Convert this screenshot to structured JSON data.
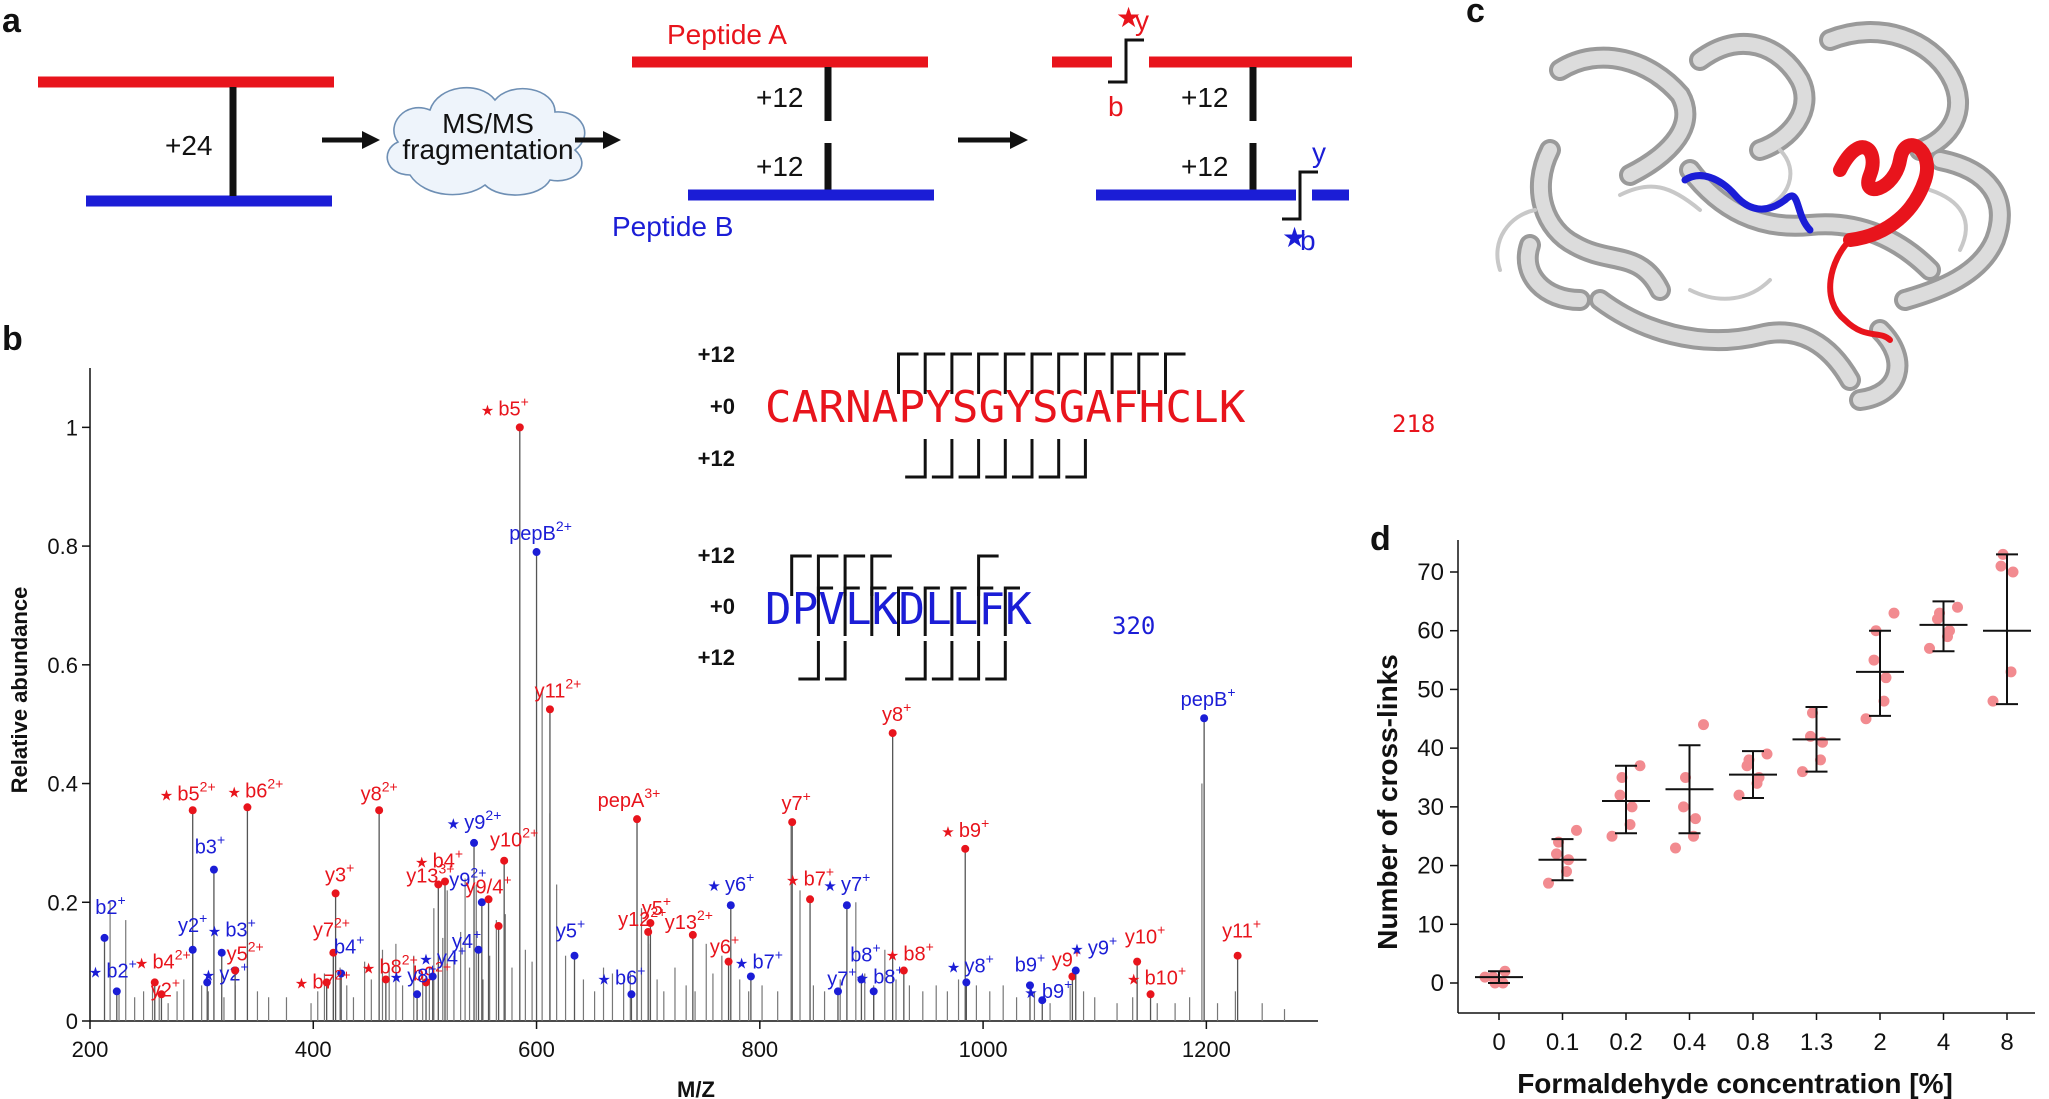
{
  "colors": {
    "red": "#e8141c",
    "blue": "#1b1dd6",
    "pink": "#f28b90",
    "grey": "#8a8a8a",
    "black": "#111111"
  },
  "panels": {
    "a": "a",
    "b": "b",
    "c": "c",
    "d": "d"
  },
  "schematic": {
    "mass_total": "+24",
    "cloud_line1": "MS/MS",
    "cloud_line2": "fragmentation",
    "peptide_a": "Peptide A",
    "peptide_b": "Peptide B",
    "mass_half": "+12",
    "ion_y": "y",
    "ion_b": "b",
    "star": "★"
  },
  "spectrum": {
    "xlabel": "M/Z",
    "ylabel": "Relative abundance",
    "xlim": [
      200,
      1300
    ],
    "ylim": [
      0,
      1.1
    ],
    "xticks": [
      {
        "value": 200,
        "label": "200"
      },
      {
        "value": 400,
        "label": "400"
      },
      {
        "value": 600,
        "label": "600"
      },
      {
        "value": 800,
        "label": "800"
      },
      {
        "value": 1000,
        "label": "1000"
      },
      {
        "value": 1200,
        "label": "1200"
      }
    ],
    "yticks": [
      {
        "value": 0,
        "label": "0"
      },
      {
        "value": 0.2,
        "label": "0.2"
      },
      {
        "value": 0.4,
        "label": "0.4"
      },
      {
        "value": 0.6,
        "label": "0.6"
      },
      {
        "value": 0.8,
        "label": "0.8"
      },
      {
        "value": 1,
        "label": "1"
      }
    ],
    "background_peaks": [
      [
        218,
        0.2
      ],
      [
        226,
        0.05
      ],
      [
        232,
        0.17
      ],
      [
        240,
        0.04
      ],
      [
        248,
        0.05
      ],
      [
        256,
        0.06
      ],
      [
        262,
        0.04
      ],
      [
        270,
        0.03
      ],
      [
        278,
        0.05
      ],
      [
        284,
        0.07
      ],
      [
        300,
        0.06
      ],
      [
        306,
        0.05
      ],
      [
        320,
        0.04
      ],
      [
        330,
        0.06
      ],
      [
        350,
        0.05
      ],
      [
        360,
        0.04
      ],
      [
        376,
        0.04
      ],
      [
        398,
        0.03
      ],
      [
        404,
        0.05
      ],
      [
        410,
        0.08
      ],
      [
        418,
        0.11
      ],
      [
        424,
        0.09
      ],
      [
        430,
        0.06
      ],
      [
        436,
        0.04
      ],
      [
        446,
        0.1
      ],
      [
        452,
        0.07
      ],
      [
        462,
        0.12
      ],
      [
        468,
        0.09
      ],
      [
        474,
        0.13
      ],
      [
        480,
        0.06
      ],
      [
        490,
        0.11
      ],
      [
        498,
        0.08
      ],
      [
        504,
        0.09
      ],
      [
        508,
        0.19
      ],
      [
        516,
        0.14
      ],
      [
        520,
        0.22
      ],
      [
        526,
        0.11
      ],
      [
        532,
        0.15
      ],
      [
        536,
        0.24
      ],
      [
        540,
        0.09
      ],
      [
        546,
        0.23
      ],
      [
        552,
        0.07
      ],
      [
        558,
        0.11
      ],
      [
        564,
        0.17
      ],
      [
        572,
        0.18
      ],
      [
        578,
        0.09
      ],
      [
        590,
        0.12
      ],
      [
        596,
        0.1
      ],
      [
        605,
        0.56
      ],
      [
        612,
        0.35
      ],
      [
        618,
        0.23
      ],
      [
        626,
        0.11
      ],
      [
        642,
        0.07
      ],
      [
        652,
        0.05
      ],
      [
        660,
        0.09
      ],
      [
        668,
        0.08
      ],
      [
        678,
        0.07
      ],
      [
        684,
        0.08
      ],
      [
        694,
        0.19
      ],
      [
        702,
        0.13
      ],
      [
        708,
        0.07
      ],
      [
        714,
        0.05
      ],
      [
        724,
        0.09
      ],
      [
        734,
        0.06
      ],
      [
        742,
        0.05
      ],
      [
        752,
        0.13
      ],
      [
        758,
        0.08
      ],
      [
        766,
        0.11
      ],
      [
        782,
        0.07
      ],
      [
        790,
        0.05
      ],
      [
        802,
        0.06
      ],
      [
        816,
        0.05
      ],
      [
        828,
        0.33
      ],
      [
        836,
        0.22
      ],
      [
        848,
        0.06
      ],
      [
        858,
        0.05
      ],
      [
        872,
        0.07
      ],
      [
        886,
        0.2
      ],
      [
        894,
        0.08
      ],
      [
        902,
        0.06
      ],
      [
        912,
        0.12
      ],
      [
        922,
        0.07
      ],
      [
        934,
        0.06
      ],
      [
        946,
        0.05
      ],
      [
        958,
        0.06
      ],
      [
        968,
        0.05
      ],
      [
        978,
        0.07
      ],
      [
        994,
        0.06
      ],
      [
        1006,
        0.05
      ],
      [
        1018,
        0.06
      ],
      [
        1030,
        0.04
      ],
      [
        1046,
        0.05
      ],
      [
        1060,
        0.03
      ],
      [
        1078,
        0.06
      ],
      [
        1090,
        0.05
      ],
      [
        1100,
        0.04
      ],
      [
        1120,
        0.03
      ],
      [
        1134,
        0.04
      ],
      [
        1156,
        0.03
      ],
      [
        1172,
        0.03
      ],
      [
        1185,
        0.04
      ],
      [
        1196,
        0.4
      ],
      [
        1210,
        0.03
      ],
      [
        1226,
        0.05
      ],
      [
        1250,
        0.03
      ],
      [
        1270,
        0.02
      ]
    ],
    "peaks": [
      {
        "mz": 585,
        "y": 1.0,
        "c": "red",
        "star": true,
        "label": "b5",
        "sup": "+",
        "lx": -15,
        "ly": -12
      },
      {
        "mz": 600,
        "y": 0.79,
        "c": "blue",
        "star": false,
        "label": "pepB",
        "sup": "2+",
        "lx": 4,
        "ly": -12
      },
      {
        "mz": 612,
        "y": 0.525,
        "c": "red",
        "star": false,
        "label": "y11",
        "sup": "2+",
        "lx": 8,
        "ly": -12
      },
      {
        "mz": 919,
        "y": 0.485,
        "c": "red",
        "star": false,
        "label": "y8",
        "sup": "+",
        "lx": 4,
        "ly": -12
      },
      {
        "mz": 1198,
        "y": 0.51,
        "c": "blue",
        "star": false,
        "label": "pepB",
        "sup": "+",
        "lx": 4,
        "ly": -12
      },
      {
        "mz": 292,
        "y": 0.355,
        "c": "red",
        "star": true,
        "label": "b5",
        "sup": "2+",
        "lx": -5,
        "ly": -10
      },
      {
        "mz": 341,
        "y": 0.36,
        "c": "red",
        "star": true,
        "label": "b6",
        "sup": "2+",
        "lx": 8,
        "ly": -10
      },
      {
        "mz": 459,
        "y": 0.355,
        "c": "red",
        "star": false,
        "label": "y8",
        "sup": "2+",
        "lx": 0,
        "ly": -10
      },
      {
        "mz": 690,
        "y": 0.34,
        "c": "red",
        "star": false,
        "label": "pepA",
        "sup": "3+",
        "lx": -8,
        "ly": -12
      },
      {
        "mz": 829,
        "y": 0.335,
        "c": "red",
        "star": false,
        "label": "y7",
        "sup": "+",
        "lx": 4,
        "ly": -12
      },
      {
        "mz": 984,
        "y": 0.29,
        "c": "red",
        "star": true,
        "label": "b9",
        "sup": "+",
        "lx": 0,
        "ly": -12
      },
      {
        "mz": 311,
        "y": 0.255,
        "c": "blue",
        "star": false,
        "label": "b3",
        "sup": "+",
        "lx": -4,
        "ly": -16
      },
      {
        "mz": 544,
        "y": 0.3,
        "c": "blue",
        "star": true,
        "label": "y9",
        "sup": "2+",
        "lx": 0,
        "ly": -14
      },
      {
        "mz": 571,
        "y": 0.27,
        "c": "red",
        "star": false,
        "label": "y10",
        "sup": "2+",
        "lx": 10,
        "ly": -14
      },
      {
        "mz": 420,
        "y": 0.215,
        "c": "red",
        "star": false,
        "label": "y3",
        "sup": "+",
        "lx": 4,
        "ly": -12
      },
      {
        "mz": 518,
        "y": 0.235,
        "c": "red",
        "star": true,
        "label": "b4",
        "sup": "+",
        "lx": -6,
        "ly": -14
      },
      {
        "mz": 512,
        "y": 0.23,
        "c": "red",
        "star": false,
        "label": "y13",
        "sup": "3+",
        "lx": -8,
        "ly": -2
      },
      {
        "mz": 551,
        "y": 0.2,
        "c": "blue",
        "star": false,
        "label": "y9",
        "sup": "2+",
        "lx": -14,
        "ly": -16
      },
      {
        "mz": 557,
        "y": 0.205,
        "c": "red",
        "star": false,
        "label": "y9/4",
        "sup": "+",
        "lx": 0,
        "ly": -6
      },
      {
        "mz": 566,
        "y": 0.16,
        "c": "red",
        "star": false,
        "label": "",
        "sup": "",
        "lx": 0,
        "ly": 0
      },
      {
        "mz": 774,
        "y": 0.195,
        "c": "blue",
        "star": true,
        "label": "y6",
        "sup": "+",
        "lx": 0,
        "ly": -14
      },
      {
        "mz": 845,
        "y": 0.205,
        "c": "red",
        "star": true,
        "label": "b7",
        "sup": "+",
        "lx": 0,
        "ly": -14
      },
      {
        "mz": 878,
        "y": 0.195,
        "c": "blue",
        "star": true,
        "label": "y7",
        "sup": "+",
        "lx": 0,
        "ly": -14
      },
      {
        "mz": 702,
        "y": 0.165,
        "c": "red",
        "star": false,
        "label": "y5",
        "sup": "+",
        "lx": 6,
        "ly": -8
      },
      {
        "mz": 700,
        "y": 0.15,
        "c": "red",
        "star": false,
        "label": "y12",
        "sup": "2+",
        "lx": -6,
        "ly": -6
      },
      {
        "mz": 740,
        "y": 0.145,
        "c": "red",
        "star": false,
        "label": "y13",
        "sup": "2+",
        "lx": -4,
        "ly": -6
      },
      {
        "mz": 772,
        "y": 0.1,
        "c": "red",
        "star": false,
        "label": "y6",
        "sup": "+",
        "lx": -4,
        "ly": -8
      },
      {
        "mz": 792,
        "y": 0.075,
        "c": "blue",
        "star": true,
        "label": "b7",
        "sup": "+",
        "lx": 8,
        "ly": -8
      },
      {
        "mz": 634,
        "y": 0.11,
        "c": "blue",
        "star": false,
        "label": "y5",
        "sup": "+",
        "lx": -4,
        "ly": -18
      },
      {
        "mz": 685,
        "y": 0.045,
        "c": "blue",
        "star": true,
        "label": "b6",
        "sup": "+",
        "lx": -10,
        "ly": -10
      },
      {
        "mz": 292,
        "y": 0.12,
        "c": "blue",
        "star": false,
        "label": "y2",
        "sup": "+",
        "lx": 0,
        "ly": -18
      },
      {
        "mz": 318,
        "y": 0.115,
        "c": "blue",
        "star": true,
        "label": "b3",
        "sup": "+",
        "lx": 10,
        "ly": -16
      },
      {
        "mz": 305,
        "y": 0.065,
        "c": "blue",
        "star": true,
        "label": "y2",
        "sup": "+",
        "lx": 18,
        "ly": -2
      },
      {
        "mz": 330,
        "y": 0.085,
        "c": "red",
        "star": false,
        "label": "y5",
        "sup": "2+",
        "lx": 10,
        "ly": -10
      },
      {
        "mz": 213,
        "y": 0.14,
        "c": "blue",
        "star": false,
        "label": "b2",
        "sup": "+",
        "lx": 6,
        "ly": -24
      },
      {
        "mz": 224,
        "y": 0.05,
        "c": "blue",
        "star": true,
        "label": "b2",
        "sup": "+",
        "lx": -4,
        "ly": -14
      },
      {
        "mz": 258,
        "y": 0.065,
        "c": "red",
        "star": true,
        "label": "b4",
        "sup": "2+",
        "lx": 8,
        "ly": -14
      },
      {
        "mz": 264,
        "y": 0.045,
        "c": "red",
        "star": false,
        "label": "y2",
        "sup": "+",
        "lx": 4,
        "ly": 2
      },
      {
        "mz": 418,
        "y": 0.115,
        "c": "red",
        "star": false,
        "label": "y7",
        "sup": "2+",
        "lx": -2,
        "ly": -16
      },
      {
        "mz": 425,
        "y": 0.08,
        "c": "blue",
        "star": false,
        "label": "b4",
        "sup": "+",
        "lx": 8,
        "ly": -20
      },
      {
        "mz": 412,
        "y": 0.065,
        "c": "red",
        "star": true,
        "label": "b7",
        "sup": "2+",
        "lx": -4,
        "ly": 6
      },
      {
        "mz": 465,
        "y": 0.07,
        "c": "red",
        "star": true,
        "label": "b8",
        "sup": "2+",
        "lx": 4,
        "ly": -6
      },
      {
        "mz": 501,
        "y": 0.065,
        "c": "red",
        "star": false,
        "label": "b9",
        "sup": "2+",
        "lx": 6,
        "ly": -2
      },
      {
        "mz": 493,
        "y": 0.045,
        "c": "blue",
        "star": true,
        "label": "y8",
        "sup": "+",
        "lx": -4,
        "ly": 0
      },
      {
        "mz": 548,
        "y": 0.12,
        "c": "blue",
        "star": false,
        "label": "y4",
        "sup": "+",
        "lx": -12,
        "ly": -2
      },
      {
        "mz": 507,
        "y": 0.075,
        "c": "blue",
        "star": true,
        "label": "y4",
        "sup": "+",
        "lx": 10,
        "ly": 0
      },
      {
        "mz": 870,
        "y": 0.05,
        "c": "blue",
        "star": false,
        "label": "y7",
        "sup": "+",
        "lx": 4,
        "ly": -6
      },
      {
        "mz": 891,
        "y": 0.07,
        "c": "blue",
        "star": false,
        "label": "b8",
        "sup": "+",
        "lx": 4,
        "ly": -18
      },
      {
        "mz": 902,
        "y": 0.05,
        "c": "blue",
        "star": true,
        "label": "b8",
        "sup": "+",
        "lx": 6,
        "ly": -8
      },
      {
        "mz": 929,
        "y": 0.085,
        "c": "red",
        "star": true,
        "label": "b8",
        "sup": "+",
        "lx": 6,
        "ly": -10
      },
      {
        "mz": 985,
        "y": 0.065,
        "c": "blue",
        "star": true,
        "label": "y8",
        "sup": "+",
        "lx": 4,
        "ly": -10
      },
      {
        "mz": 1042,
        "y": 0.06,
        "c": "blue",
        "star": false,
        "label": "b9",
        "sup": "+",
        "lx": 0,
        "ly": -14
      },
      {
        "mz": 1053,
        "y": 0.035,
        "c": "blue",
        "star": true,
        "label": "b9",
        "sup": "+",
        "lx": 6,
        "ly": -2
      },
      {
        "mz": 1080,
        "y": 0.075,
        "c": "red",
        "star": false,
        "label": "y9",
        "sup": "+",
        "lx": -6,
        "ly": -10
      },
      {
        "mz": 1083,
        "y": 0.085,
        "c": "blue",
        "star": true,
        "label": "y9",
        "sup": "+",
        "lx": 18,
        "ly": -16
      },
      {
        "mz": 1138,
        "y": 0.1,
        "c": "red",
        "star": false,
        "label": "y10",
        "sup": "+",
        "lx": 8,
        "ly": -18
      },
      {
        "mz": 1150,
        "y": 0.045,
        "c": "red",
        "star": true,
        "label": "b10",
        "sup": "+",
        "lx": 6,
        "ly": -10
      },
      {
        "mz": 1228,
        "y": 0.11,
        "c": "red",
        "star": false,
        "label": "y11",
        "sup": "+",
        "lx": 4,
        "ly": -18
      }
    ]
  },
  "fragment_map": {
    "labels": {
      "top": "+12",
      "mid": "+0",
      "bottom": "+12"
    },
    "peptide_a": {
      "sequence": "CARNAPYSGYSGAFHCLK",
      "index": "218",
      "top_breaks": [
        4,
        5,
        6,
        7,
        8,
        9,
        10,
        11,
        12,
        13,
        14
      ],
      "bottom_breaks": [
        5,
        6,
        7,
        8,
        9,
        10,
        11
      ]
    },
    "peptide_b": {
      "sequence": "DPVLKDLLFK",
      "index": "320",
      "top_breaks": [
        0,
        1,
        2,
        3,
        7
      ],
      "mid_breaks_top": [
        1,
        2,
        3,
        4,
        5,
        6,
        7,
        8
      ],
      "bottom_breaks": [
        1,
        2,
        5,
        6,
        7,
        8
      ]
    }
  },
  "crosslinks": {
    "xlabel": "Formaldehyde concentration [%]",
    "ylabel": "Number of cross-links",
    "ylim": [
      0,
      74
    ],
    "yticks": [
      {
        "value": 0,
        "label": "0"
      },
      {
        "value": 10,
        "label": "10"
      },
      {
        "value": 20,
        "label": "20"
      },
      {
        "value": 30,
        "label": "30"
      },
      {
        "value": 40,
        "label": "40"
      },
      {
        "value": 50,
        "label": "50"
      },
      {
        "value": 60,
        "label": "60"
      },
      {
        "value": 70,
        "label": "70"
      }
    ],
    "categories": [
      "0",
      "0.1",
      "0.2",
      "0.4",
      "0.8",
      "1.3",
      "2",
      "4",
      "8"
    ],
    "groups": [
      {
        "mean": 1,
        "sd_low": 0,
        "sd_high": 2,
        "points": [
          1,
          0,
          2,
          1,
          0
        ]
      },
      {
        "mean": 21,
        "sd_low": 17.5,
        "sd_high": 24.5,
        "points": [
          17,
          19,
          21,
          22,
          24,
          26
        ]
      },
      {
        "mean": 31,
        "sd_low": 25.5,
        "sd_high": 37,
        "points": [
          25,
          27,
          30,
          32,
          35,
          37
        ]
      },
      {
        "mean": 33,
        "sd_low": 25.5,
        "sd_high": 40.5,
        "points": [
          23,
          25,
          28,
          30,
          35,
          44
        ]
      },
      {
        "mean": 35.5,
        "sd_low": 31.5,
        "sd_high": 39.5,
        "points": [
          32,
          34,
          35,
          37,
          38,
          39
        ]
      },
      {
        "mean": 41.5,
        "sd_low": 36,
        "sd_high": 47,
        "points": [
          36,
          38,
          41,
          42,
          46
        ]
      },
      {
        "mean": 53,
        "sd_low": 45.5,
        "sd_high": 60,
        "points": [
          45,
          48,
          52,
          55,
          60,
          63
        ]
      },
      {
        "mean": 61,
        "sd_low": 56.5,
        "sd_high": 65,
        "points": [
          57,
          59,
          60,
          62,
          63,
          64
        ]
      },
      {
        "mean": 60,
        "sd_low": 47.5,
        "sd_high": 73,
        "points": [
          48,
          53,
          70,
          71,
          73
        ]
      }
    ]
  }
}
